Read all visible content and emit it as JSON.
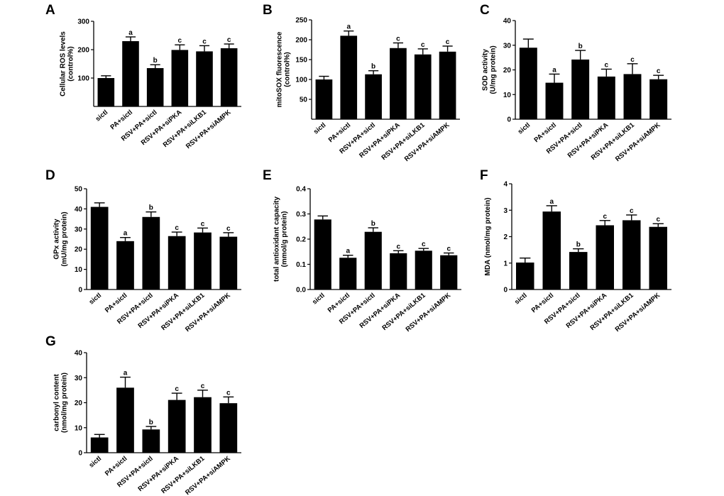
{
  "chart_data": [
    {
      "panel": "A",
      "type": "bar",
      "categories": [
        "sictl",
        "PA+sictl",
        "RSV+PA+sictl",
        "RSV+PA+siPKA",
        "RSV+PA+siLKB1",
        "RSV+PA+siAMPK"
      ],
      "values": [
        100,
        230,
        135,
        199,
        194,
        205
      ],
      "errors": [
        8,
        15,
        12,
        18,
        20,
        15
      ],
      "significance": [
        "",
        "a",
        "b",
        "c",
        "c",
        "c"
      ],
      "ylabel": [
        "Cellular ROS levels",
        "(control%)"
      ],
      "ylim": [
        0,
        300
      ],
      "yticks": [
        100,
        200,
        300
      ],
      "ytick_labels": [
        "100",
        "200",
        "300"
      ],
      "zero_label": "",
      "bar_color": "#000000"
    },
    {
      "panel": "B",
      "type": "bar",
      "categories": [
        "sictl",
        "PA+sictl",
        "RSV+PA+sictl",
        "RSV+PA+siPKA",
        "RSV+PA+siLKB1",
        "RSV+PA+siAMPK"
      ],
      "values": [
        100,
        210,
        113,
        179,
        163,
        170
      ],
      "errors": [
        8,
        12,
        9,
        13,
        14,
        14
      ],
      "significance": [
        "",
        "a",
        "b",
        "c",
        "c",
        "c"
      ],
      "ylabel": [
        "mitoSOX fluorescence",
        "(control%)"
      ],
      "ylim": [
        0,
        250
      ],
      "yticks": [
        50,
        100,
        150,
        200,
        250
      ],
      "ytick_labels": [
        "50",
        "100",
        "150",
        "200",
        "250"
      ],
      "zero_label": "",
      "bar_color": "#000000"
    },
    {
      "panel": "C",
      "type": "bar",
      "categories": [
        "sictl",
        "PA+sictl",
        "RSV+PA+sictl",
        "RSV+PA+siPKA",
        "RSV+PA+siLKB1",
        "RSV+PA+siAMPK"
      ],
      "values": [
        29,
        14.8,
        24.2,
        17.3,
        18.3,
        16.2
      ],
      "errors": [
        3.5,
        3.5,
        3.7,
        3.0,
        4.2,
        1.6
      ],
      "significance": [
        "",
        "a",
        "b",
        "c",
        "c",
        "c"
      ],
      "ylabel": [
        "SOD activity",
        "(U/mg protein)"
      ],
      "ylim": [
        0,
        40
      ],
      "yticks": [
        0,
        10,
        20,
        30,
        40
      ],
      "ytick_labels": [
        "0",
        "10",
        "20",
        "30",
        "40"
      ],
      "zero_label": "",
      "bar_color": "#000000"
    },
    {
      "panel": "D",
      "type": "bar",
      "categories": [
        "sictl",
        "PA+sictl",
        "RSV+PA+sictl",
        "RSV+PA+siPKA",
        "RSV+PA+siLKB1",
        "RSV+PA+siAMPK"
      ],
      "values": [
        41,
        24,
        36,
        26.5,
        28.3,
        26.2
      ],
      "errors": [
        2,
        1.8,
        2.5,
        2,
        2.2,
        2
      ],
      "significance": [
        "",
        "a",
        "b",
        "c",
        "c",
        "c"
      ],
      "ylabel": [
        "GPx activity",
        "(mU/mg protein)"
      ],
      "ylim": [
        0,
        50
      ],
      "yticks": [
        0,
        10,
        20,
        30,
        40,
        50
      ],
      "ytick_labels": [
        "0",
        "10",
        "20",
        "30",
        "40",
        "50"
      ],
      "zero_label": "",
      "bar_color": "#000000"
    },
    {
      "panel": "E",
      "type": "bar",
      "categories": [
        "sictl",
        "PA+sictl",
        "RSV+PA+sictl",
        "RSV+PA+siPKA",
        "RSV+PA+siLKB1",
        "RSV+PA+siAMPK"
      ],
      "values": [
        0.278,
        0.126,
        0.229,
        0.144,
        0.154,
        0.136
      ],
      "errors": [
        0.014,
        0.01,
        0.016,
        0.01,
        0.009,
        0.009
      ],
      "significance": [
        "",
        "a",
        "b",
        "c",
        "c",
        "c"
      ],
      "ylabel": [
        "total antioxidant capacity",
        "(mmol/g protein)"
      ],
      "ylim": [
        0,
        0.4
      ],
      "yticks": [
        0,
        0.1,
        0.2,
        0.3,
        0.4
      ],
      "ytick_labels": [
        "0.0",
        "0.1",
        "0.2",
        "0.3",
        "0.4"
      ],
      "zero_label": "",
      "bar_color": "#000000"
    },
    {
      "panel": "F",
      "type": "bar",
      "categories": [
        "sictl",
        "PA+sictl",
        "RSV+PA+sictl",
        "RSV+PA+siPKA",
        "RSV+PA+siLKB1",
        "RSV+PA+siAMPK"
      ],
      "values": [
        1.02,
        2.95,
        1.42,
        2.43,
        2.62,
        2.37
      ],
      "errors": [
        0.17,
        0.22,
        0.12,
        0.18,
        0.2,
        0.12
      ],
      "significance": [
        "",
        "a",
        "b",
        "c",
        "c",
        "c"
      ],
      "ylabel": [
        "MDA (nmol/mg protein)"
      ],
      "ylim": [
        0,
        4
      ],
      "yticks": [
        0,
        1,
        2,
        3,
        4
      ],
      "ytick_labels": [
        "0",
        "1",
        "2",
        "3",
        "4"
      ],
      "zero_label": "",
      "bar_color": "#000000"
    },
    {
      "panel": "G",
      "type": "bar",
      "categories": [
        "sictl",
        "PA+sictl",
        "RSV+PA+sictl",
        "RSV+PA+siPKA",
        "RSV+PA+siLKB1",
        "RSV+PA+siAMPK"
      ],
      "values": [
        6.1,
        26,
        9.3,
        21.1,
        22.2,
        19.8
      ],
      "errors": [
        1.2,
        4.2,
        1.2,
        2.7,
        2.8,
        2.5
      ],
      "significance": [
        "",
        "a",
        "b",
        "c",
        "c",
        "c"
      ],
      "ylabel": [
        "carbonyl content",
        "(nmol/mg protein)"
      ],
      "ylim": [
        0,
        40
      ],
      "yticks": [
        0,
        10,
        20,
        30,
        40
      ],
      "ytick_labels": [
        "0",
        "10",
        "20",
        "30",
        "40"
      ],
      "zero_label": "",
      "bar_color": "#000000"
    }
  ]
}
